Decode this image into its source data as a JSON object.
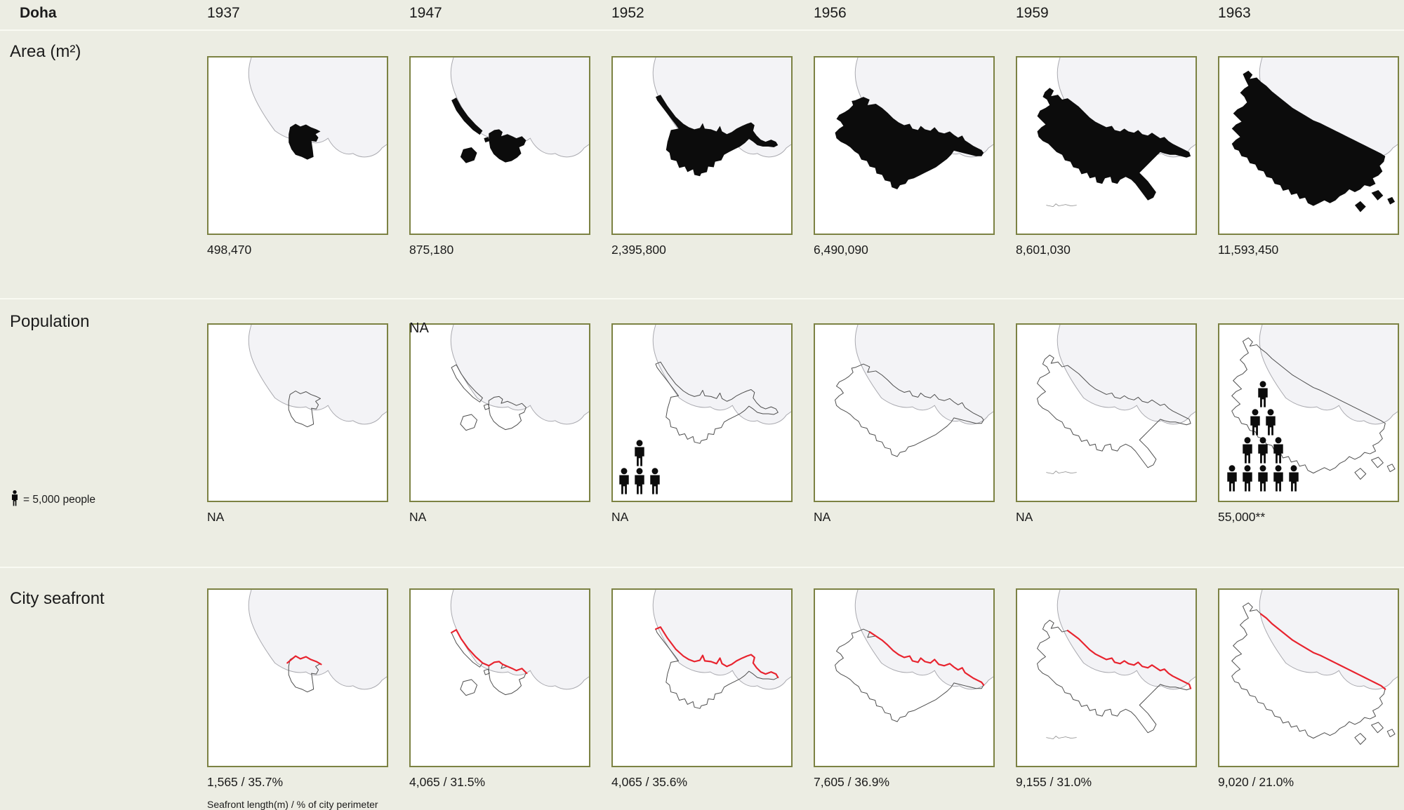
{
  "header": {
    "title": "Doha",
    "years": [
      "1937",
      "1947",
      "1952",
      "1956",
      "1959",
      "1963"
    ]
  },
  "rows": [
    {
      "id": "area",
      "label": "Area (m²)",
      "values": [
        "498,470",
        "875,180",
        "2,395,800",
        "6,490,090",
        "8,601,030",
        "11,593,450"
      ]
    },
    {
      "id": "population",
      "label": "Population",
      "legend_label": "= 5,000 people",
      "values": [
        "NA",
        "NA",
        "NA",
        "NA",
        "NA",
        "55,000**"
      ],
      "tile_corner_note": {
        "year_index": 1,
        "text": "NA"
      },
      "pictogram_rows": {
        "1952": [
          1,
          3
        ],
        "1963": [
          1,
          2,
          3,
          5
        ]
      },
      "pictogram_unit_people": 5000
    },
    {
      "id": "seafront",
      "label": "City seafront",
      "values": [
        "1,565 / 35.7%",
        "4,065 / 31.5%",
        "4,065 / 35.6%",
        "7,605 / 36.9%",
        "9,155 / 31.0%",
        "9,020 / 21.0%"
      ],
      "caption": "Seafront length(m)  /  % of city perimeter"
    }
  ],
  "colors": {
    "background": "#ecede3",
    "tile_border": "#7c8243",
    "sea_fill": "#f3f3f6",
    "city_fill": "#0c0c0c",
    "outline_gray": "#4d4d4d",
    "seafront_red": "#e8232e"
  },
  "chart_data": {
    "type": "table",
    "title": "Doha",
    "categories": [
      "1937",
      "1947",
      "1952",
      "1956",
      "1959",
      "1963"
    ],
    "series": [
      {
        "name": "Area (m²)",
        "values": [
          498470,
          875180,
          2395800,
          6490090,
          8601030,
          11593450
        ]
      },
      {
        "name": "Population",
        "values": [
          null,
          null,
          null,
          null,
          null,
          55000
        ],
        "notes": "NA for 1937-1959; 1963 value flagged **; pictograms: 1 figure = 5,000 people (4 figures shown in 1952, 11 figures shown in 1963)"
      },
      {
        "name": "Seafront length (m)",
        "values": [
          1565,
          4065,
          4065,
          7605,
          9155,
          9020
        ]
      },
      {
        "name": "% of city perimeter",
        "values": [
          35.7,
          31.5,
          35.6,
          36.9,
          31.0,
          21.0
        ]
      }
    ],
    "layout": "small multiples: 3 metric rows × 6 year columns of coastal maps"
  }
}
